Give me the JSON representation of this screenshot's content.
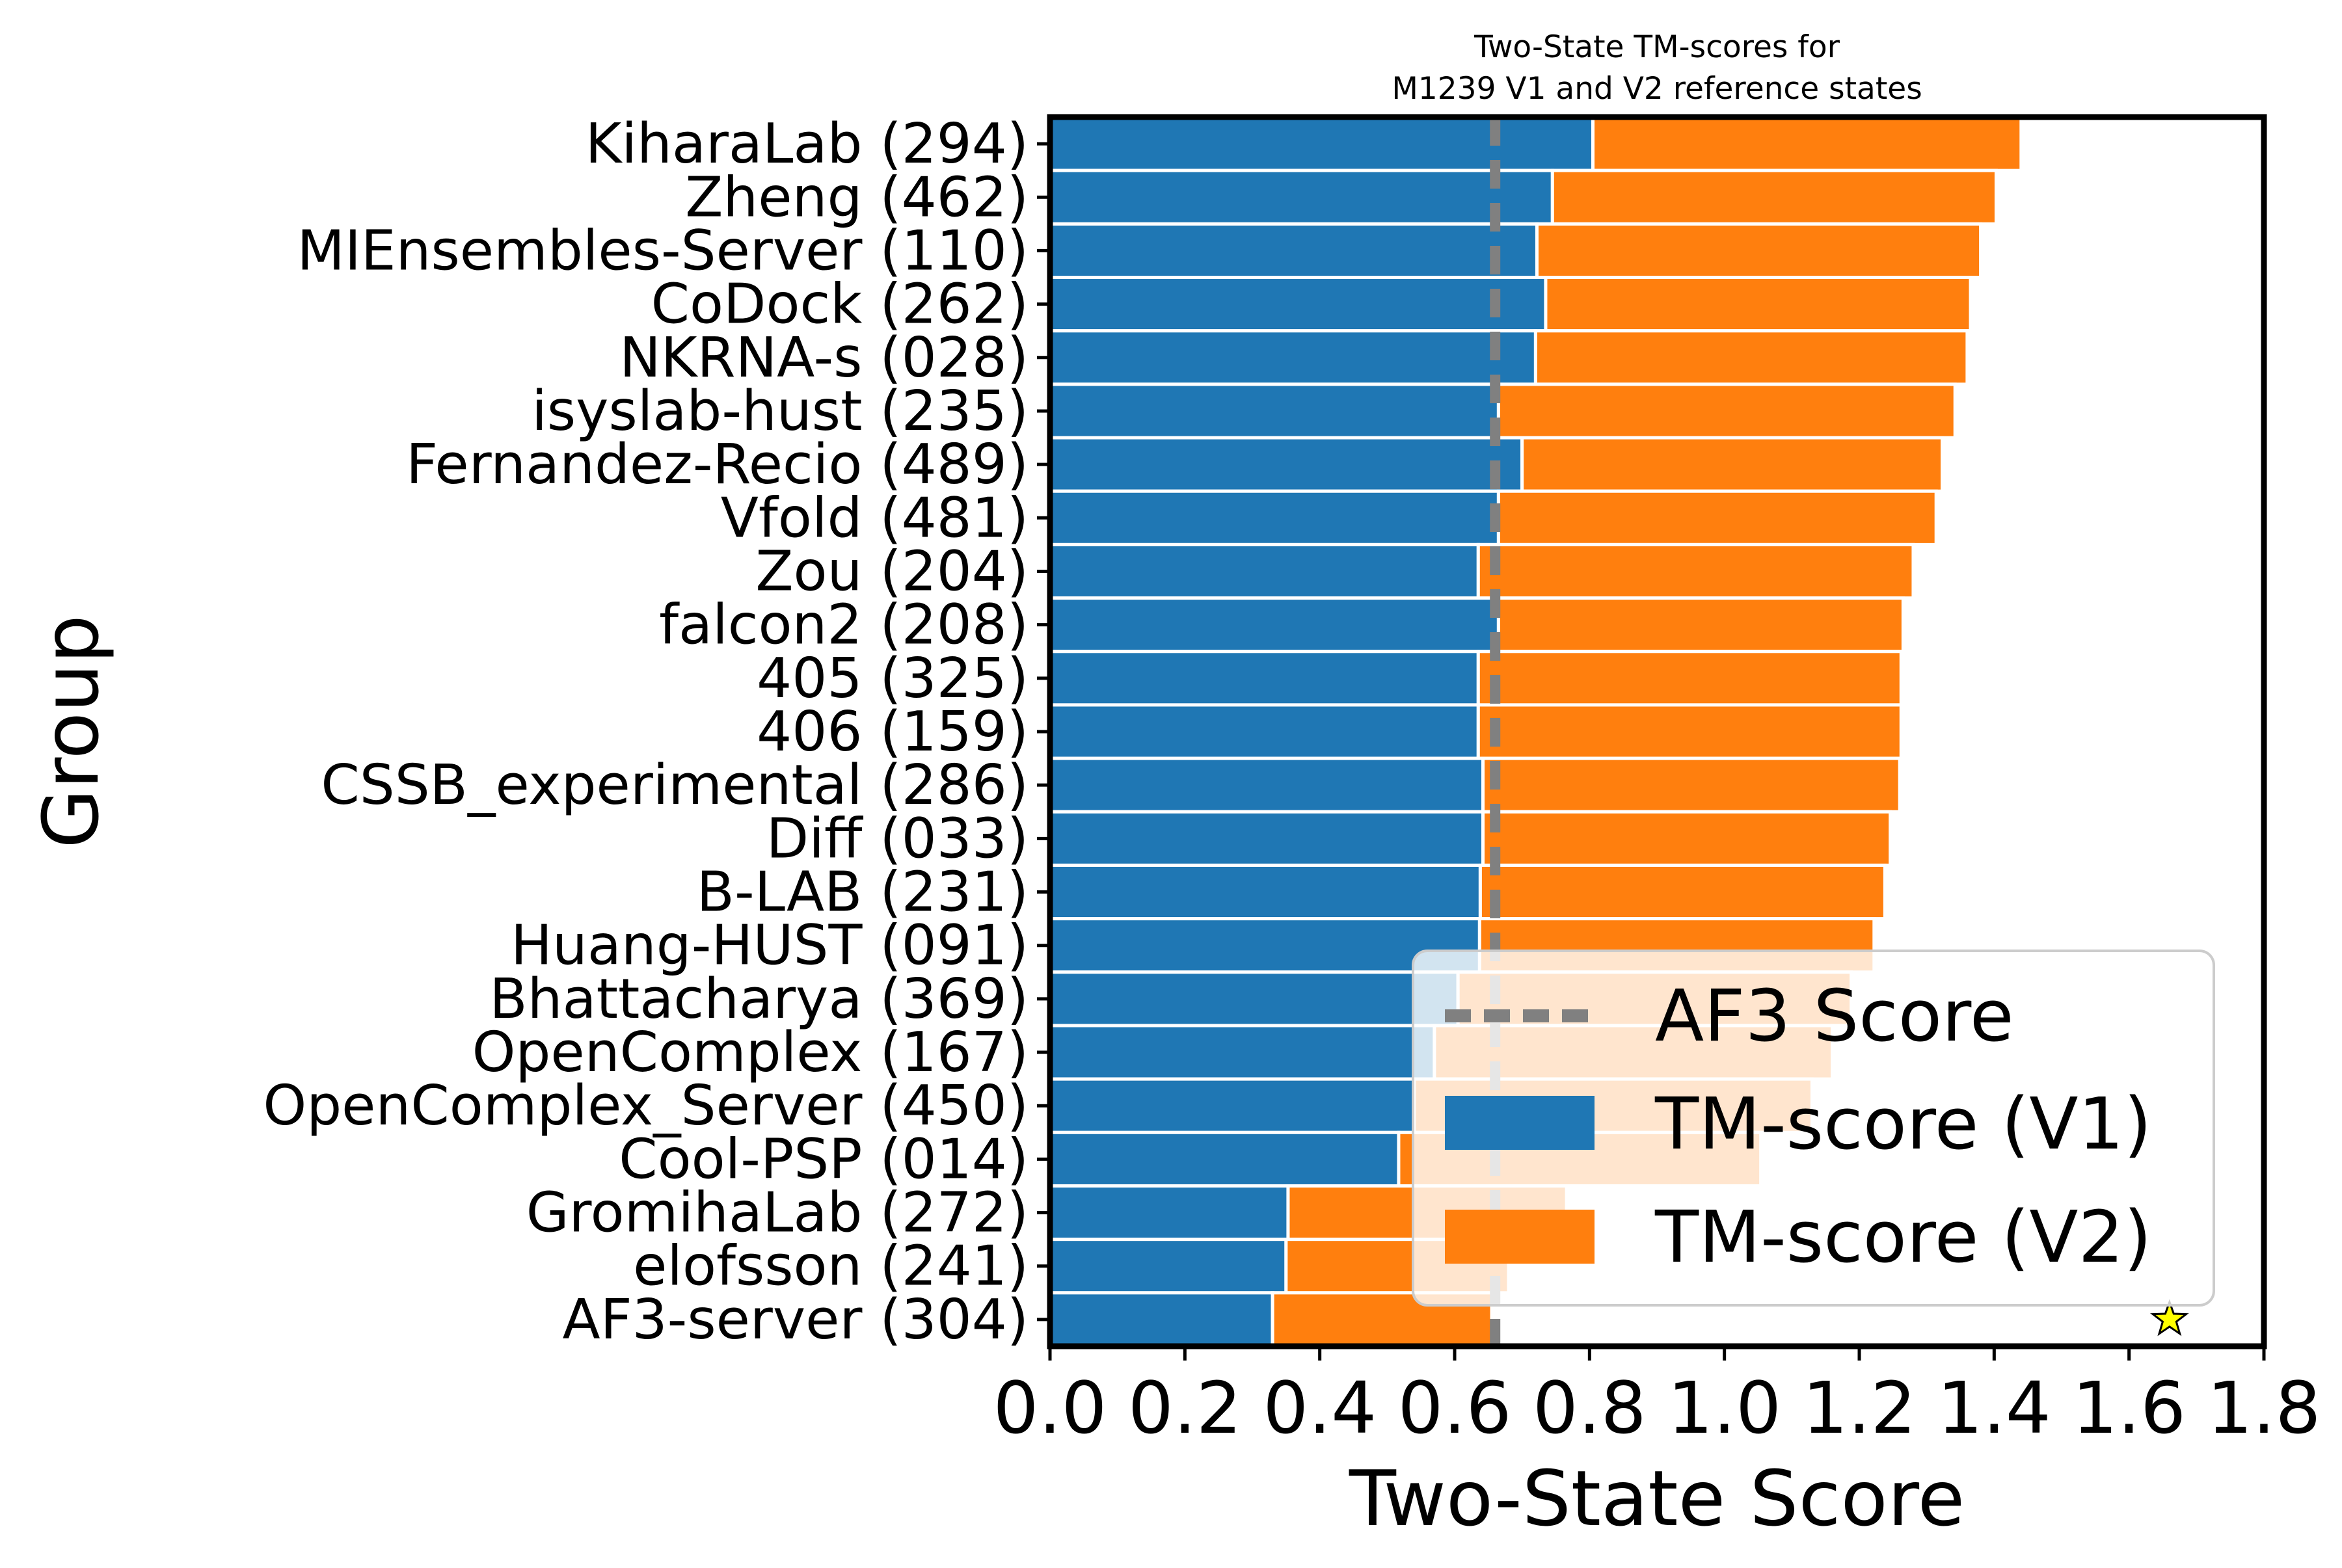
{
  "chart_data": {
    "type": "bar",
    "orientation": "horizontal",
    "stacked": true,
    "title": "Two-State TM-scores for\nM1239 V1 and V2 reference states",
    "xlabel": "Two-State Score",
    "ylabel": "Group",
    "xlim": [
      0.0,
      1.8
    ],
    "xticks": [
      "0.0",
      "0.2",
      "0.4",
      "0.6",
      "0.8",
      "1.0",
      "1.2",
      "1.4",
      "1.6",
      "1.8"
    ],
    "categories": [
      "KiharaLab (294)",
      "Zheng (462)",
      "MIEnsembles-Server (110)",
      "CoDock (262)",
      "NKRNA-s (028)",
      "isyslab-hust (235)",
      "Fernandez-Recio (489)",
      "Vfold (481)",
      "Zou (204)",
      "falcon2 (208)",
      "405 (325)",
      "406 (159)",
      "CSSB_experimental (286)",
      "Diff (033)",
      "B-LAB (231)",
      "Huang-HUST (091)",
      "Bhattacharya (369)",
      "OpenComplex (167)",
      "OpenComplex_Server (450)",
      "Cool-PSP (014)",
      "GromihaLab (272)",
      "elofsson (241)",
      "AF3-server (304)"
    ],
    "series": [
      {
        "name": "TM-score (V1)",
        "color": "#1f77b4",
        "values": [
          0.805,
          0.745,
          0.722,
          0.735,
          0.72,
          0.665,
          0.7,
          0.665,
          0.635,
          0.665,
          0.635,
          0.635,
          0.642,
          0.642,
          0.638,
          0.637,
          0.605,
          0.57,
          0.54,
          0.517,
          0.353,
          0.35,
          0.33
        ]
      },
      {
        "name": "TM-score (V2)",
        "color": "#ff7f0e",
        "values": [
          0.635,
          0.658,
          0.658,
          0.63,
          0.64,
          0.677,
          0.623,
          0.649,
          0.645,
          0.6,
          0.627,
          0.627,
          0.618,
          0.604,
          0.6,
          0.585,
          0.583,
          0.59,
          0.59,
          0.537,
          0.413,
          0.33,
          0.325
        ]
      }
    ],
    "reference_line": {
      "label": "AF3 Score",
      "value": 0.66,
      "color": "#808080",
      "style": "dashed"
    },
    "marker": {
      "symbol": "star",
      "color": "#ffff00",
      "x": 1.66,
      "category": "AF3-server (304)"
    },
    "legend": {
      "placement": "lower-right",
      "entries": [
        "AF3 Score",
        "TM-score (V1)",
        "TM-score (V2)"
      ]
    },
    "grid": false
  }
}
